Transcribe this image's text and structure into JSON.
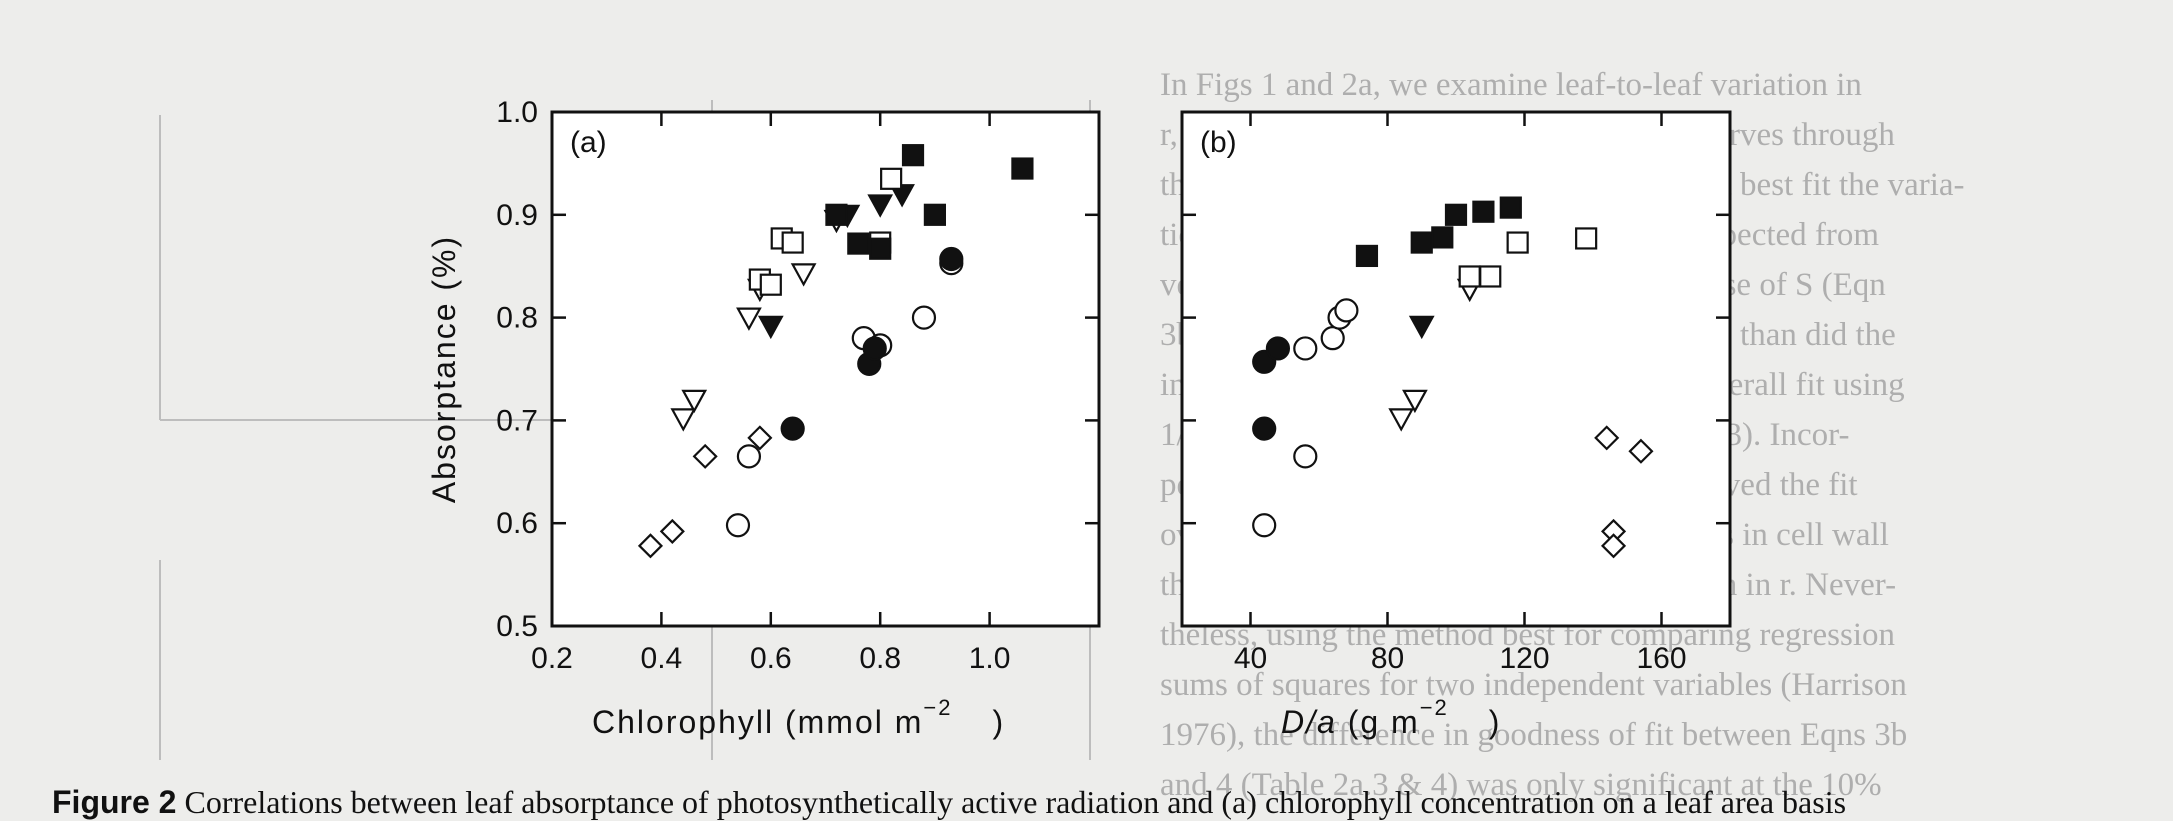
{
  "background_text": [
    "In Figs 1 and 2a, we examine leaf-to-leaf variation in",
    "r, as a function of T and S, respectively. Curves through",
    "the data are the results of the equations that best fit the varia-",
    "tion in r, assuming that r is constant. As expected from",
    "von Caemmerer & Evans (1991), the inverse of S (Eqn",
    "3b) accounted for more of the variation in r than did the",
    "inverse of T (Eqn 4; Table 2a.2), but the overall fit using",
    "1/S was relatively poor (r2 = 0.2; Table 2a.3). Incor-",
    "poration of T/S (Fig. 2a; Table 2a.4) improved the fit",
    "over that of 1/S, suggesting that differences in cell wall",
    "thickness accounted for additional variation in r. Never-",
    "theless, using the method best for comparing regression",
    "sums of squares for two independent variables (Harrison",
    "1976), the difference in goodness of fit between Eqns 3b",
    "and 4 (Table 2a.3 & 4) was only significant at the 10%"
  ],
  "caption": {
    "label": "Figure 2",
    "text": "Correlations between leaf absorptance of photosynthetically active radiation and (a) chlorophyll concentration on a leaf area basis"
  },
  "chart_data": [
    {
      "type": "scatter",
      "panel_label": "(a)",
      "xlabel_main": "Chlorophyll (mmol m",
      "xlabel_sup": "−2",
      "xlabel_end": ")",
      "ylabel": "Absorptance (%)",
      "xlim": [
        0.2,
        1.2
      ],
      "ylim": [
        0.5,
        1.0
      ],
      "x_ticks": [
        "0.2",
        "0.4",
        "0.6",
        "0.8",
        "1.0"
      ],
      "x_tick_values": [
        0.2,
        0.4,
        0.6,
        0.8,
        1.0
      ],
      "y_ticks": [
        "0.5",
        "0.6",
        "0.7",
        "0.8",
        "0.9",
        "1.0"
      ],
      "y_tick_values": [
        0.5,
        0.6,
        0.7,
        0.8,
        0.9,
        1.0
      ],
      "series": [
        {
          "marker": "diamond-open",
          "points": [
            [
              0.38,
              0.578
            ],
            [
              0.42,
              0.592
            ],
            [
              0.48,
              0.665
            ],
            [
              0.58,
              0.683
            ]
          ]
        },
        {
          "marker": "triangle-open",
          "points": [
            [
              0.44,
              0.702
            ],
            [
              0.46,
              0.72
            ],
            [
              0.56,
              0.8
            ],
            [
              0.58,
              0.828
            ],
            [
              0.66,
              0.843
            ],
            [
              0.72,
              0.895
            ]
          ]
        },
        {
          "marker": "triangle-filled",
          "points": [
            [
              0.6,
              0.792
            ],
            [
              0.74,
              0.9
            ],
            [
              0.8,
              0.91
            ],
            [
              0.84,
              0.92
            ]
          ]
        },
        {
          "marker": "circle-open",
          "points": [
            [
              0.54,
              0.598
            ],
            [
              0.56,
              0.665
            ],
            [
              0.77,
              0.78
            ],
            [
              0.8,
              0.773
            ],
            [
              0.88,
              0.8
            ],
            [
              0.93,
              0.853
            ]
          ]
        },
        {
          "marker": "circle-filled",
          "points": [
            [
              0.64,
              0.692
            ],
            [
              0.78,
              0.755
            ],
            [
              0.79,
              0.77
            ],
            [
              0.93,
              0.857
            ]
          ]
        },
        {
          "marker": "square-open",
          "points": [
            [
              0.58,
              0.837
            ],
            [
              0.6,
              0.832
            ],
            [
              0.62,
              0.877
            ],
            [
              0.64,
              0.873
            ],
            [
              0.8,
              0.873
            ],
            [
              0.82,
              0.935
            ]
          ]
        },
        {
          "marker": "square-filled",
          "points": [
            [
              0.72,
              0.9
            ],
            [
              0.76,
              0.872
            ],
            [
              0.8,
              0.867
            ],
            [
              0.86,
              0.958
            ],
            [
              0.9,
              0.9
            ],
            [
              1.06,
              0.945
            ]
          ]
        }
      ]
    },
    {
      "type": "scatter",
      "panel_label": "(b)",
      "xlabel_main": "D/a",
      "xlabel_rest": " (g m",
      "xlabel_sup": "−2",
      "xlabel_end": ")",
      "xlim": [
        20,
        180
      ],
      "ylim": [
        0.5,
        1.0
      ],
      "x_ticks": [
        "40",
        "80",
        "120",
        "160"
      ],
      "x_tick_values": [
        40,
        80,
        120,
        160
      ],
      "y_tick_values": [
        0.5,
        0.6,
        0.7,
        0.8,
        0.9,
        1.0
      ],
      "series": [
        {
          "marker": "diamond-open",
          "points": [
            [
              144,
              0.683
            ],
            [
              154,
              0.67
            ],
            [
              146,
              0.592
            ],
            [
              146,
              0.578
            ]
          ]
        },
        {
          "marker": "triangle-open",
          "points": [
            [
              88,
              0.72
            ],
            [
              84,
              0.702
            ],
            [
              104,
              0.828
            ]
          ]
        },
        {
          "marker": "triangle-filled",
          "points": [
            [
              90,
              0.792
            ]
          ]
        },
        {
          "marker": "circle-open",
          "points": [
            [
              44,
              0.598
            ],
            [
              56,
              0.665
            ],
            [
              56,
              0.77
            ],
            [
              64,
              0.78
            ],
            [
              66,
              0.8
            ],
            [
              68,
              0.807
            ]
          ]
        },
        {
          "marker": "circle-filled",
          "points": [
            [
              44,
              0.757
            ],
            [
              44,
              0.692
            ],
            [
              48,
              0.77
            ]
          ]
        },
        {
          "marker": "square-open",
          "points": [
            [
              104,
              0.84
            ],
            [
              110,
              0.84
            ],
            [
              118,
              0.873
            ],
            [
              138,
              0.877
            ]
          ]
        },
        {
          "marker": "square-filled",
          "points": [
            [
              74,
              0.86
            ],
            [
              90,
              0.873
            ],
            [
              96,
              0.878
            ],
            [
              100,
              0.9
            ],
            [
              108,
              0.903
            ],
            [
              116,
              0.907
            ]
          ]
        }
      ]
    }
  ]
}
